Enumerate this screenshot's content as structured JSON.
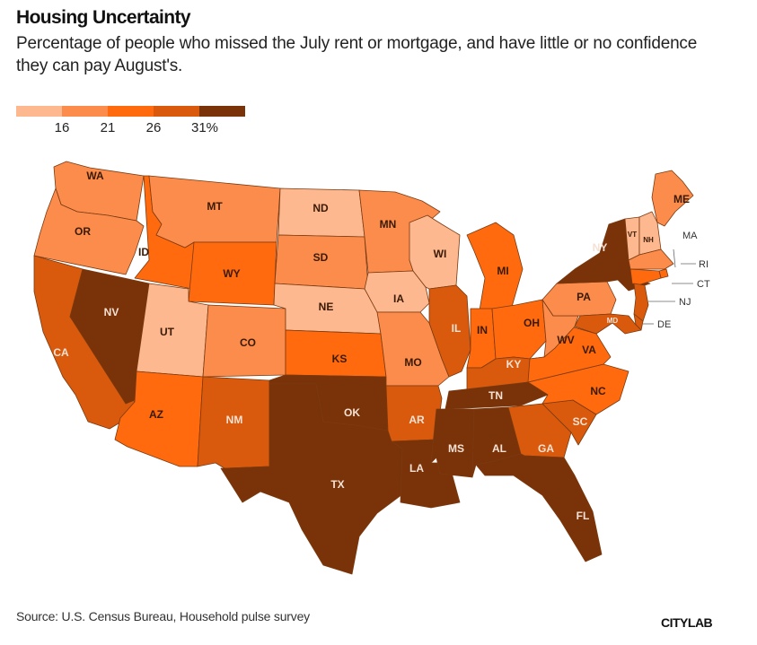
{
  "title": "Housing Uncertainty",
  "subtitle": "Percentage of people who missed the July rent or mortgage, and have little or no confidence they can pay August's.",
  "legend": {
    "colors": [
      "#fdb88f",
      "#fb8c4c",
      "#ff6a0e",
      "#d95a0c",
      "#7a3208"
    ],
    "ticks": [
      "16",
      "21",
      "26",
      "31%"
    ]
  },
  "chart_data": {
    "type": "choropleth",
    "title": "Housing Uncertainty",
    "bins": [
      {
        "range": "<16",
        "color": "#fdb88f"
      },
      {
        "range": "16-21",
        "color": "#fb8c4c"
      },
      {
        "range": "21-26",
        "color": "#ff6a0e"
      },
      {
        "range": "26-31",
        "color": "#d95a0c"
      },
      {
        "range": ">=31",
        "color": "#7a3208"
      }
    ],
    "states": [
      {
        "code": "WA",
        "bin": 2
      },
      {
        "code": "OR",
        "bin": 2
      },
      {
        "code": "CA",
        "bin": 4
      },
      {
        "code": "NV",
        "bin": 5
      },
      {
        "code": "ID",
        "bin": 3
      },
      {
        "code": "MT",
        "bin": 2
      },
      {
        "code": "WY",
        "bin": 3
      },
      {
        "code": "UT",
        "bin": 1
      },
      {
        "code": "CO",
        "bin": 2
      },
      {
        "code": "AZ",
        "bin": 3
      },
      {
        "code": "NM",
        "bin": 4
      },
      {
        "code": "ND",
        "bin": 1
      },
      {
        "code": "SD",
        "bin": 2
      },
      {
        "code": "NE",
        "bin": 1
      },
      {
        "code": "KS",
        "bin": 3
      },
      {
        "code": "OK",
        "bin": 5
      },
      {
        "code": "TX",
        "bin": 5
      },
      {
        "code": "MN",
        "bin": 2
      },
      {
        "code": "IA",
        "bin": 1
      },
      {
        "code": "MO",
        "bin": 2
      },
      {
        "code": "AR",
        "bin": 4
      },
      {
        "code": "LA",
        "bin": 5
      },
      {
        "code": "WI",
        "bin": 1
      },
      {
        "code": "IL",
        "bin": 4
      },
      {
        "code": "MI",
        "bin": 3
      },
      {
        "code": "IN",
        "bin": 3
      },
      {
        "code": "OH",
        "bin": 3
      },
      {
        "code": "KY",
        "bin": 4
      },
      {
        "code": "TN",
        "bin": 5
      },
      {
        "code": "MS",
        "bin": 5
      },
      {
        "code": "AL",
        "bin": 5
      },
      {
        "code": "GA",
        "bin": 4
      },
      {
        "code": "FL",
        "bin": 5
      },
      {
        "code": "SC",
        "bin": 4
      },
      {
        "code": "NC",
        "bin": 3
      },
      {
        "code": "VA",
        "bin": 3
      },
      {
        "code": "WV",
        "bin": 2
      },
      {
        "code": "PA",
        "bin": 2
      },
      {
        "code": "NY",
        "bin": 5
      },
      {
        "code": "ME",
        "bin": 2
      },
      {
        "code": "VT",
        "bin": 1
      },
      {
        "code": "NH",
        "bin": 1
      },
      {
        "code": "MA",
        "bin": 2
      },
      {
        "code": "RI",
        "bin": 3
      },
      {
        "code": "CT",
        "bin": 3
      },
      {
        "code": "NJ",
        "bin": 4
      },
      {
        "code": "DE",
        "bin": 4
      },
      {
        "code": "MD",
        "bin": 4
      }
    ]
  },
  "source": "Source: U.S. Census Bureau, Household pulse survey",
  "brand": "CITYLAB"
}
